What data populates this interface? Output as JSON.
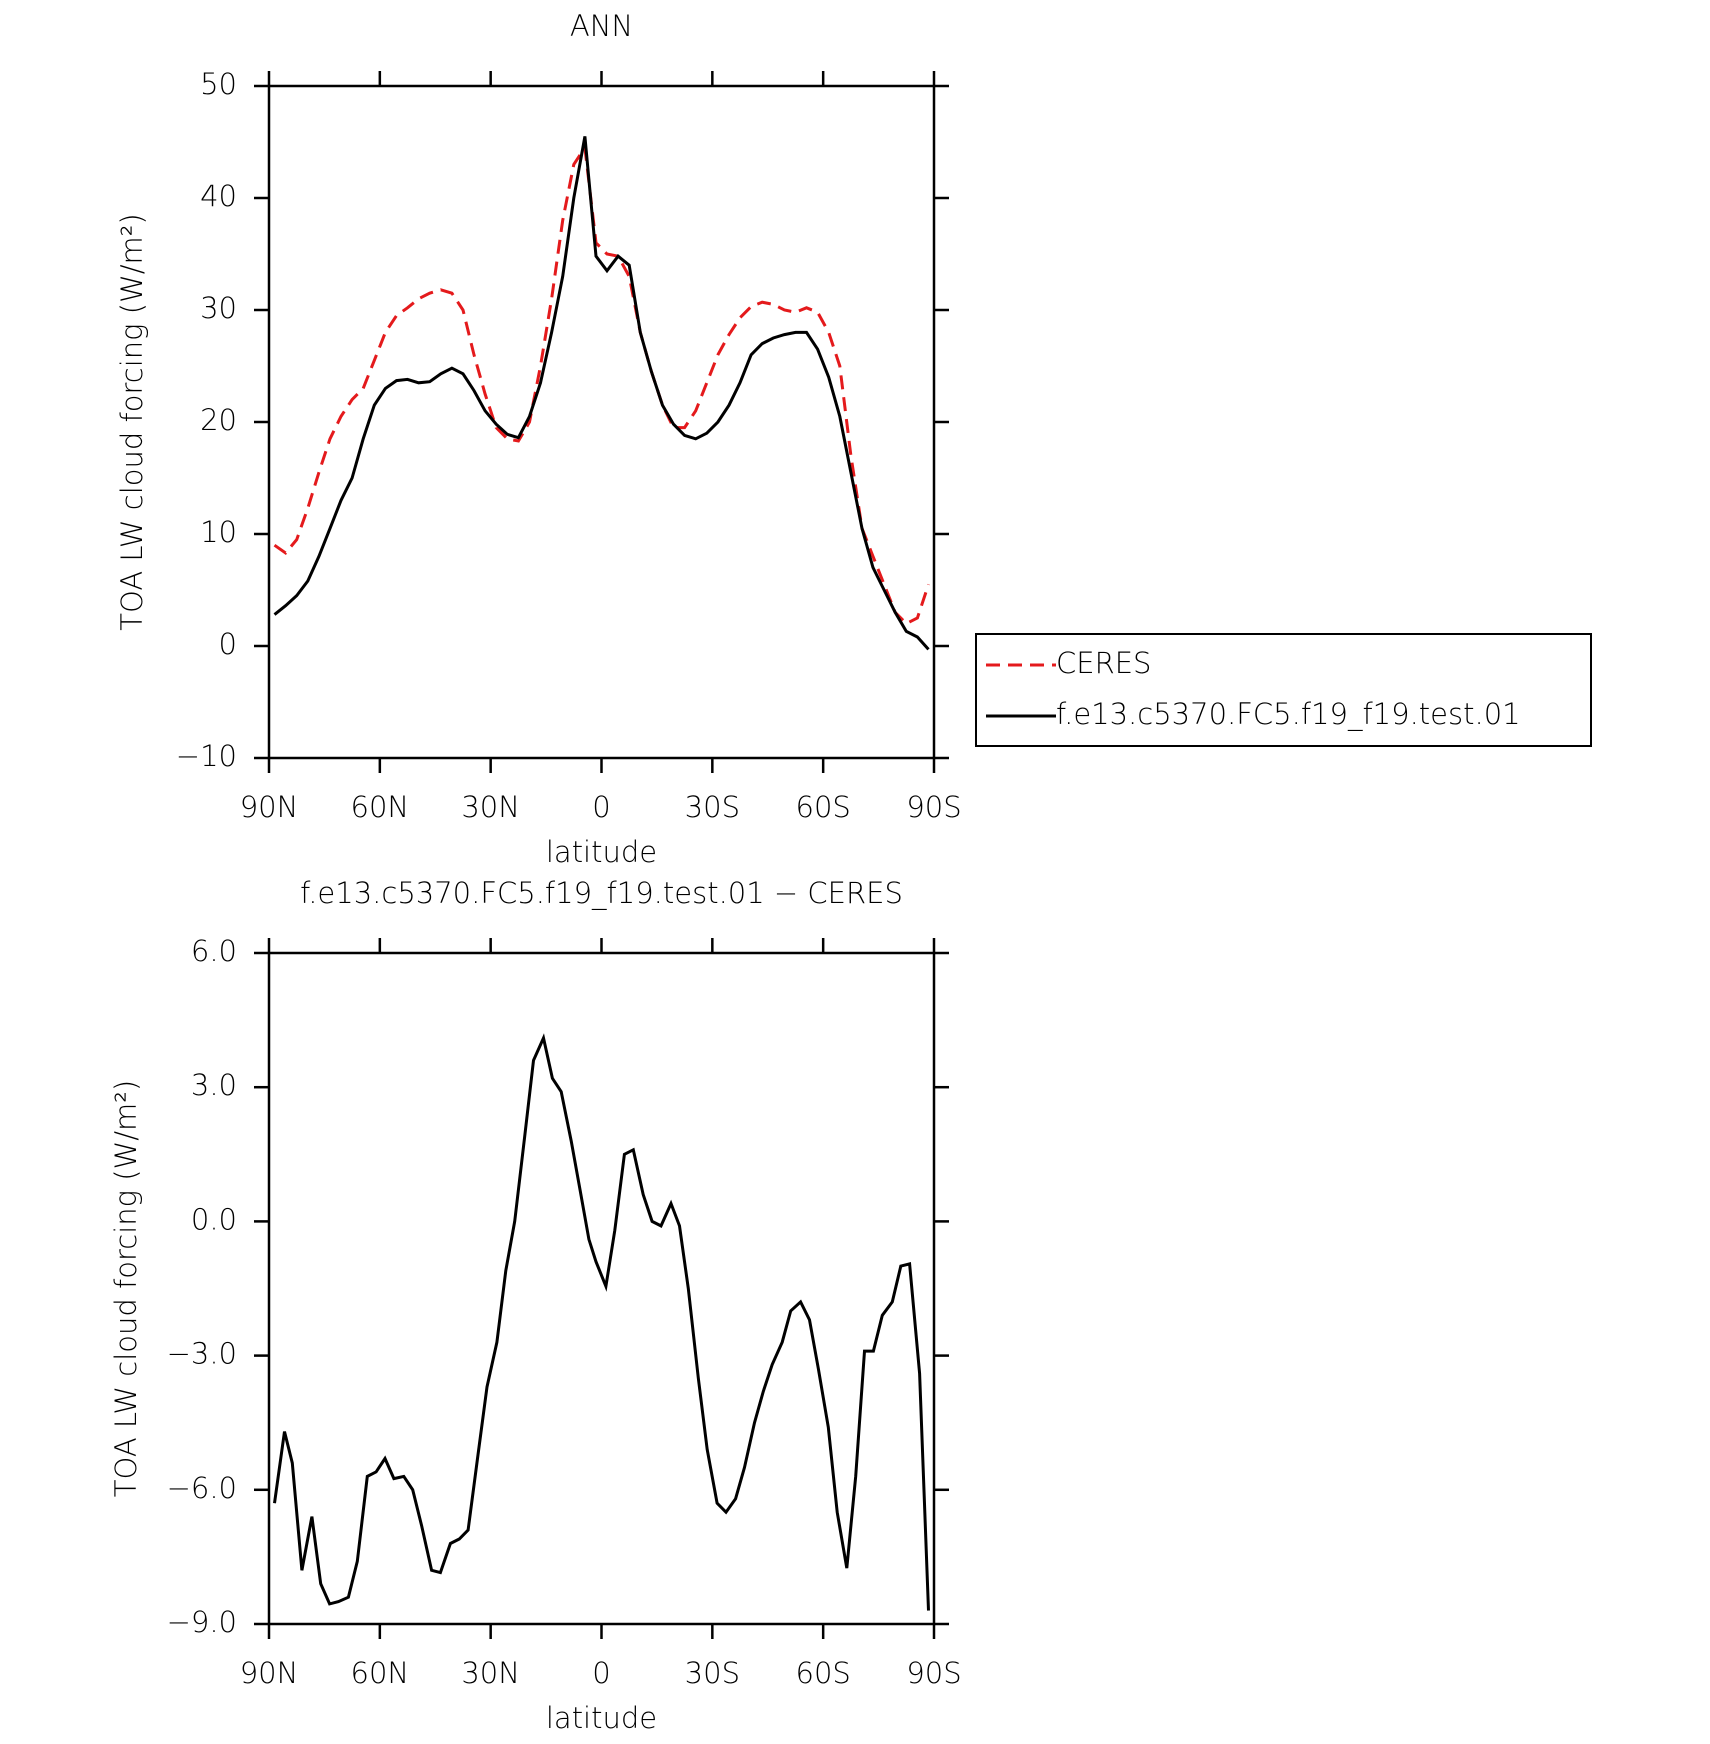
{
  "chart_data": [
    {
      "type": "line",
      "title": "ANN",
      "xlabel": "latitude",
      "ylabel": "TOA LW cloud forcing (W/m²)",
      "xlim": [
        90,
        -90
      ],
      "ylim": [
        -10,
        50
      ],
      "xticks": [
        {
          "value": 90,
          "label": "90N"
        },
        {
          "value": 60,
          "label": "60N"
        },
        {
          "value": 30,
          "label": "30N"
        },
        0,
        {
          "value": -30,
          "label": "30S"
        },
        {
          "value": -60,
          "label": "60S"
        },
        {
          "value": -90,
          "label": "90S"
        }
      ],
      "yticks": [
        {
          "value": -10,
          "label": "−10"
        },
        0,
        10,
        20,
        30,
        40,
        50
      ],
      "legend": "right",
      "x": [
        88.5,
        85.5,
        82.5,
        79.5,
        76.5,
        73.5,
        70.5,
        67.5,
        64.5,
        61.5,
        58.5,
        55.5,
        52.5,
        49.5,
        46.5,
        43.5,
        40.5,
        37.5,
        34.5,
        31.5,
        28.5,
        25.5,
        22.5,
        19.5,
        16.5,
        13.5,
        10.5,
        7.5,
        4.5,
        1.5,
        -1.5,
        -4.5,
        -7.5,
        -10.5,
        -13.5,
        -16.5,
        -19.5,
        -22.5,
        -25.5,
        -28.5,
        -31.5,
        -34.5,
        -37.5,
        -40.5,
        -43.5,
        -46.5,
        -49.5,
        -52.5,
        -55.5,
        -58.5,
        -61.5,
        -64.5,
        -67.5,
        -70.5,
        -73.5,
        -76.5,
        -79.5,
        -82.5,
        -85.5,
        -88.5
      ],
      "series": [
        {
          "name": "CERES",
          "color": "#e41a1c",
          "dashed": true,
          "values": [
            9,
            8.3,
            9.5,
            12.3,
            15.5,
            18.5,
            20.5,
            22,
            23,
            25.5,
            28,
            29.5,
            30.2,
            31,
            31.5,
            31.8,
            31.5,
            30,
            26,
            22.5,
            19.5,
            18.5,
            18.3,
            20,
            25,
            31,
            38,
            43,
            44.5,
            36,
            35,
            34.8,
            33,
            28,
            24.5,
            21.5,
            19.5,
            19.5,
            21,
            23.5,
            26,
            27.8,
            29.3,
            30.3,
            30.7,
            30.5,
            30,
            29.8,
            30.2,
            29.8,
            28,
            25,
            17,
            10.5,
            8,
            5.5,
            3,
            2,
            2.5,
            5.5
          ]
        },
        {
          "name": "f.e13.c5370.FC5.f19_f19.test.01",
          "color": "#000000",
          "dashed": false,
          "values": [
            2.8,
            3.6,
            4.5,
            5.8,
            8,
            10.5,
            13,
            15,
            18.5,
            21.5,
            23,
            23.7,
            23.8,
            23.5,
            23.6,
            24.3,
            24.8,
            24.3,
            22.8,
            21,
            19.8,
            18.9,
            18.6,
            20.5,
            23.5,
            28,
            33,
            40,
            45.5,
            34.8,
            33.5,
            34.8,
            34,
            28,
            24.5,
            21.5,
            19.8,
            18.8,
            18.5,
            19,
            20,
            21.5,
            23.5,
            26,
            27,
            27.5,
            27.8,
            28,
            28,
            26.5,
            24,
            20.5,
            15.5,
            10.5,
            7,
            5,
            3,
            1.3,
            0.8,
            -0.3
          ]
        }
      ]
    },
    {
      "type": "line",
      "title": "f.e13.c5370.FC5.f19_f19.test.01 − CERES",
      "xlabel": "latitude",
      "ylabel": "TOA LW cloud forcing (W/m²)",
      "xlim": [
        90,
        -90
      ],
      "ylim": [
        -9,
        6
      ],
      "xticks": [
        {
          "value": 90,
          "label": "90N"
        },
        {
          "value": 60,
          "label": "60N"
        },
        {
          "value": 30,
          "label": "30N"
        },
        0,
        {
          "value": -30,
          "label": "30S"
        },
        {
          "value": -60,
          "label": "60S"
        },
        {
          "value": -90,
          "label": "90S"
        }
      ],
      "yticks": [
        {
          "value": -9,
          "label": "−9.0"
        },
        {
          "value": -6,
          "label": "−6.0"
        },
        {
          "value": -3,
          "label": "−3.0"
        },
        {
          "value": 0,
          "label": "0.0"
        },
        {
          "value": 3,
          "label": "3.0"
        },
        {
          "value": 6,
          "label": "6.0"
        }
      ],
      "color": "#000000",
      "x": [
        88.5,
        85.8,
        83.7,
        81.1,
        78.4,
        76,
        73.6,
        71.2,
        68.5,
        66.1,
        63.4,
        61,
        58.6,
        56.2,
        53.5,
        51.1,
        48.7,
        46,
        43.6,
        40.9,
        38.5,
        36.1,
        33.4,
        31,
        28.3,
        25.9,
        23.5,
        20.8,
        18.4,
        15.7,
        13.3,
        10.9,
        8.2,
        5.8,
        3.4,
        1.5,
        -1.2,
        -3.6,
        -6.2,
        -8.6,
        -11.3,
        -13.7,
        -16.1,
        -18.8,
        -21.1,
        -23.5,
        -26.2,
        -28.6,
        -31.3,
        -33.7,
        -36.3,
        -38.7,
        -41.4,
        -43.8,
        -46.2,
        -48.9,
        -51.2,
        -53.9,
        -56.3,
        -58.7,
        -61.4,
        -63.8,
        -66.4,
        -68.8,
        -71.2,
        -73.6,
        -76,
        -78.7,
        -81,
        -83.4,
        -86.1,
        -88.5
      ],
      "values": [
        -6.3,
        -4.7,
        -5.4,
        -7.8,
        -6.6,
        -8.1,
        -8.55,
        -8.5,
        -8.4,
        -7.6,
        -5.7,
        -5.6,
        -5.3,
        -5.75,
        -5.7,
        -6,
        -6.8,
        -7.8,
        -7.85,
        -7.2,
        -7.1,
        -6.9,
        -5.2,
        -3.7,
        -2.7,
        -1.1,
        0,
        1.9,
        3.6,
        4.1,
        3.2,
        2.9,
        1.8,
        0.7,
        -0.4,
        -0.9,
        -1.45,
        -0.2,
        1.5,
        1.6,
        0.6,
        0,
        -0.1,
        0.4,
        -0.1,
        -1.5,
        -3.5,
        -5.1,
        -6.3,
        -6.5,
        -6.2,
        -5.5,
        -4.5,
        -3.8,
        -3.2,
        -2.7,
        -2,
        -1.8,
        -2.2,
        -3.3,
        -4.6,
        -6.5,
        -7.75,
        -5.7,
        -2.9,
        -2.9,
        -2.1,
        -1.8,
        -1,
        -0.95,
        -3.4,
        -8.7
      ]
    }
  ]
}
